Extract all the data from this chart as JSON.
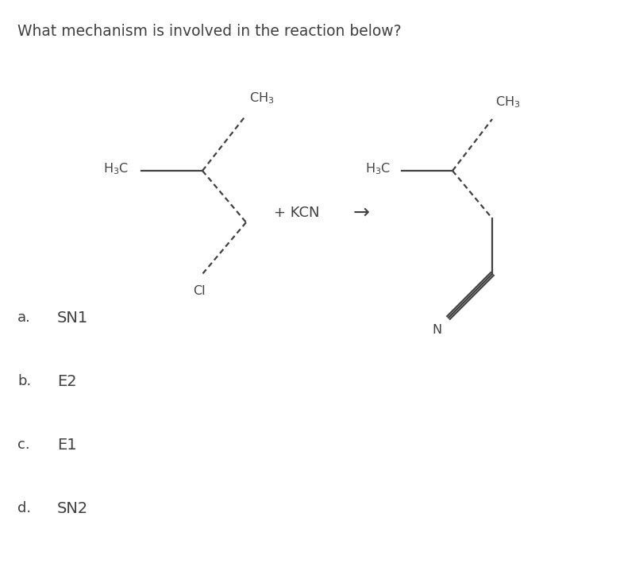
{
  "title": "What mechanism is involved in the reaction below?",
  "title_fontsize": 13.5,
  "background_color": "#ffffff",
  "text_color": "#404040",
  "options": [
    {
      "label": "a.",
      "text": "SN1"
    },
    {
      "label": "b.",
      "text": "E2"
    },
    {
      "label": "c.",
      "text": "E1"
    },
    {
      "label": "d.",
      "text": "SN2"
    }
  ],
  "reagent_text": "+ KCN",
  "arrow_text": "→",
  "lw": 1.6
}
